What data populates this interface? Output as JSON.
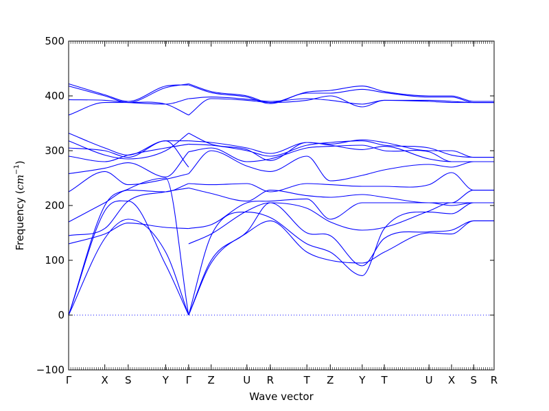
{
  "chart_data": {
    "type": "line",
    "title": "",
    "xlabel": "Wave vector",
    "ylabel": "Frequency (cm⁻¹)",
    "ylabel_parts": {
      "prefix": "Frequency (",
      "unit": "cm",
      "exponent": "−1",
      "suffix": ")"
    },
    "ylim": [
      -100,
      500
    ],
    "yticks": [
      -100,
      0,
      100,
      200,
      300,
      400,
      500
    ],
    "xlim": [
      0,
      1
    ],
    "xticks": [
      {
        "label": "Γ",
        "x": 0.0
      },
      {
        "label": "X",
        "x": 0.085
      },
      {
        "label": "S",
        "x": 0.14
      },
      {
        "label": "Y",
        "x": 0.228
      },
      {
        "label": "Γ",
        "x": 0.282
      },
      {
        "label": "Z",
        "x": 0.335
      },
      {
        "label": "U",
        "x": 0.419
      },
      {
        "label": "R",
        "x": 0.474
      },
      {
        "label": "T",
        "x": 0.56
      },
      {
        "label": "Z",
        "x": 0.615
      },
      {
        "label": "Y",
        "x": 0.69
      },
      {
        "label": "T",
        "x": 0.742
      },
      {
        "label": "U",
        "x": 0.847
      },
      {
        "label": "X",
        "x": 0.9
      },
      {
        "label": "S",
        "x": 0.952
      },
      {
        "label": "R",
        "x": 1.0
      }
    ],
    "reference_line": {
      "y": 0,
      "style": "dotted"
    },
    "line_color": "#0000ff",
    "series": [
      {
        "values": [
          [
            0,
            0
          ],
          [
            0.085,
            190
          ],
          [
            0.14,
            208
          ],
          [
            0.228,
            92
          ],
          [
            0.282,
            0
          ]
        ]
      },
      {
        "values": [
          [
            0,
            0
          ],
          [
            0.085,
            140
          ],
          [
            0.14,
            175
          ],
          [
            0.228,
            115
          ],
          [
            0.282,
            0
          ]
        ]
      },
      {
        "values": [
          [
            0,
            0
          ],
          [
            0.085,
            200
          ],
          [
            0.14,
            230
          ],
          [
            0.228,
            250
          ],
          [
            0.282,
            0
          ]
        ]
      },
      {
        "values": [
          [
            0,
            130
          ],
          [
            0.085,
            148
          ],
          [
            0.14,
            168
          ],
          [
            0.228,
            160
          ],
          [
            0.282,
            158
          ]
        ]
      },
      {
        "values": [
          [
            0,
            145
          ],
          [
            0.085,
            158
          ],
          [
            0.14,
            208
          ],
          [
            0.228,
            225
          ],
          [
            0.282,
            232
          ]
        ]
      },
      {
        "values": [
          [
            0,
            170
          ],
          [
            0.085,
            205
          ],
          [
            0.14,
            228
          ],
          [
            0.228,
            225
          ],
          [
            0.282,
            240
          ]
        ]
      },
      {
        "values": [
          [
            0,
            225
          ],
          [
            0.085,
            262
          ],
          [
            0.14,
            238
          ],
          [
            0.228,
            248
          ],
          [
            0.282,
            258
          ]
        ]
      },
      {
        "values": [
          [
            0,
            258
          ],
          [
            0.085,
            268
          ],
          [
            0.14,
            278
          ],
          [
            0.228,
            252
          ],
          [
            0.282,
            298
          ]
        ]
      },
      {
        "values": [
          [
            0,
            290
          ],
          [
            0.085,
            280
          ],
          [
            0.14,
            292
          ],
          [
            0.228,
            305
          ],
          [
            0.282,
            312
          ]
        ]
      },
      {
        "values": [
          [
            0,
            305
          ],
          [
            0.085,
            300
          ],
          [
            0.14,
            288
          ],
          [
            0.228,
            318
          ],
          [
            0.282,
            318
          ]
        ]
      },
      {
        "values": [
          [
            0,
            318
          ],
          [
            0.085,
            292
          ],
          [
            0.14,
            285
          ],
          [
            0.228,
            300
          ],
          [
            0.282,
            332
          ]
        ]
      },
      {
        "values": [
          [
            0,
            332
          ],
          [
            0.085,
            305
          ],
          [
            0.14,
            292
          ],
          [
            0.228,
            318
          ],
          [
            0.282,
            270
          ]
        ]
      },
      {
        "values": [
          [
            0,
            365
          ],
          [
            0.085,
            388
          ],
          [
            0.14,
            388
          ],
          [
            0.228,
            385
          ],
          [
            0.282,
            365
          ]
        ]
      },
      {
        "values": [
          [
            0,
            393
          ],
          [
            0.085,
            392
          ],
          [
            0.14,
            388
          ],
          [
            0.228,
            385
          ],
          [
            0.282,
            395
          ]
        ]
      },
      {
        "values": [
          [
            0,
            418
          ],
          [
            0.085,
            400
          ],
          [
            0.14,
            388
          ],
          [
            0.228,
            415
          ],
          [
            0.282,
            422
          ]
        ]
      },
      {
        "values": [
          [
            0,
            422
          ],
          [
            0.085,
            402
          ],
          [
            0.14,
            390
          ],
          [
            0.228,
            418
          ],
          [
            0.282,
            420
          ]
        ]
      },
      {
        "values": [
          [
            0.282,
            0
          ],
          [
            0.335,
            95
          ],
          [
            0.419,
            150
          ],
          [
            0.474,
            172
          ],
          [
            0.56,
            115
          ],
          [
            0.615,
            100
          ],
          [
            0.69,
            95
          ],
          [
            0.742,
            115
          ],
          [
            0.847,
            150
          ],
          [
            0.9,
            148
          ],
          [
            0.952,
            172
          ],
          [
            1,
            172
          ]
        ]
      },
      {
        "values": [
          [
            0.282,
            0
          ],
          [
            0.335,
            100
          ],
          [
            0.419,
            152
          ],
          [
            0.474,
            205
          ],
          [
            0.56,
            150
          ],
          [
            0.615,
            145
          ],
          [
            0.69,
            90
          ],
          [
            0.742,
            140
          ],
          [
            0.847,
            152
          ],
          [
            0.9,
            155
          ],
          [
            0.952,
            172
          ],
          [
            1,
            172
          ]
        ]
      },
      {
        "values": [
          [
            0.282,
            0
          ],
          [
            0.335,
            145
          ],
          [
            0.419,
            188
          ],
          [
            0.474,
            178
          ],
          [
            0.56,
            130
          ],
          [
            0.615,
            115
          ],
          [
            0.69,
            72
          ],
          [
            0.742,
            158
          ],
          [
            0.847,
            188
          ],
          [
            0.9,
            185
          ],
          [
            0.952,
            205
          ],
          [
            1,
            205
          ]
        ]
      },
      {
        "values": [
          [
            0.282,
            130
          ],
          [
            0.335,
            148
          ],
          [
            0.419,
            190
          ],
          [
            0.474,
            205
          ],
          [
            0.56,
            195
          ],
          [
            0.615,
            170
          ],
          [
            0.69,
            155
          ],
          [
            0.742,
            160
          ],
          [
            0.847,
            190
          ],
          [
            0.9,
            205
          ],
          [
            0.952,
            205
          ],
          [
            1,
            205
          ]
        ]
      },
      {
        "values": [
          [
            0.282,
            158
          ],
          [
            0.335,
            165
          ],
          [
            0.419,
            205
          ],
          [
            0.474,
            208
          ],
          [
            0.56,
            212
          ],
          [
            0.615,
            175
          ],
          [
            0.69,
            205
          ],
          [
            0.742,
            205
          ],
          [
            0.847,
            205
          ],
          [
            0.9,
            200
          ],
          [
            0.952,
            205
          ],
          [
            1,
            205
          ]
        ]
      },
      {
        "values": [
          [
            0.282,
            232
          ],
          [
            0.335,
            222
          ],
          [
            0.419,
            208
          ],
          [
            0.474,
            228
          ],
          [
            0.56,
            218
          ],
          [
            0.615,
            215
          ],
          [
            0.69,
            220
          ],
          [
            0.742,
            215
          ],
          [
            0.847,
            205
          ],
          [
            0.9,
            205
          ],
          [
            0.952,
            228
          ],
          [
            1,
            228
          ]
        ]
      },
      {
        "values": [
          [
            0.282,
            240
          ],
          [
            0.335,
            238
          ],
          [
            0.419,
            240
          ],
          [
            0.474,
            225
          ],
          [
            0.56,
            240
          ],
          [
            0.615,
            238
          ],
          [
            0.69,
            235
          ],
          [
            0.742,
            235
          ],
          [
            0.847,
            238
          ],
          [
            0.9,
            260
          ],
          [
            0.952,
            228
          ],
          [
            1,
            228
          ]
        ]
      },
      {
        "values": [
          [
            0.282,
            258
          ],
          [
            0.335,
            300
          ],
          [
            0.419,
            272
          ],
          [
            0.474,
            262
          ],
          [
            0.56,
            290
          ],
          [
            0.615,
            245
          ],
          [
            0.69,
            255
          ],
          [
            0.742,
            265
          ],
          [
            0.847,
            275
          ],
          [
            0.9,
            270
          ],
          [
            0.952,
            280
          ],
          [
            1,
            280
          ]
        ]
      },
      {
        "values": [
          [
            0.282,
            298
          ],
          [
            0.335,
            305
          ],
          [
            0.419,
            280
          ],
          [
            0.474,
            285
          ],
          [
            0.56,
            305
          ],
          [
            0.615,
            308
          ],
          [
            0.69,
            310
          ],
          [
            0.742,
            300
          ],
          [
            0.847,
            298
          ],
          [
            0.9,
            280
          ],
          [
            0.952,
            280
          ],
          [
            1,
            280
          ]
        ]
      },
      {
        "values": [
          [
            0.282,
            312
          ],
          [
            0.335,
            310
          ],
          [
            0.419,
            300
          ],
          [
            0.474,
            290
          ],
          [
            0.56,
            310
          ],
          [
            0.615,
            315
          ],
          [
            0.69,
            318
          ],
          [
            0.742,
            310
          ],
          [
            0.847,
            305
          ],
          [
            0.9,
            292
          ],
          [
            0.952,
            288
          ],
          [
            1,
            288
          ]
        ]
      },
      {
        "values": [
          [
            0.282,
            318
          ],
          [
            0.335,
            315
          ],
          [
            0.419,
            305
          ],
          [
            0.474,
            295
          ],
          [
            0.56,
            315
          ],
          [
            0.615,
            312
          ],
          [
            0.69,
            320
          ],
          [
            0.742,
            315
          ],
          [
            0.847,
            300
          ],
          [
            0.9,
            300
          ],
          [
            0.952,
            288
          ],
          [
            1,
            288
          ]
        ]
      },
      {
        "values": [
          [
            0.282,
            332
          ],
          [
            0.335,
            312
          ],
          [
            0.419,
            302
          ],
          [
            0.474,
            282
          ],
          [
            0.56,
            315
          ],
          [
            0.615,
            310
          ],
          [
            0.69,
            302
          ],
          [
            0.742,
            308
          ],
          [
            0.847,
            285
          ],
          [
            0.9,
            280
          ],
          [
            0.952,
            280
          ],
          [
            1,
            280
          ]
        ]
      },
      {
        "values": [
          [
            0.282,
            365
          ],
          [
            0.335,
            395
          ],
          [
            0.419,
            392
          ],
          [
            0.474,
            388
          ],
          [
            0.56,
            392
          ],
          [
            0.615,
            400
          ],
          [
            0.69,
            380
          ],
          [
            0.742,
            392
          ],
          [
            0.847,
            390
          ],
          [
            0.9,
            388
          ],
          [
            0.952,
            388
          ],
          [
            1,
            388
          ]
        ]
      },
      {
        "values": [
          [
            0.282,
            395
          ],
          [
            0.335,
            398
          ],
          [
            0.419,
            394
          ],
          [
            0.474,
            390
          ],
          [
            0.56,
            395
          ],
          [
            0.615,
            392
          ],
          [
            0.69,
            385
          ],
          [
            0.742,
            392
          ],
          [
            0.847,
            392
          ],
          [
            0.9,
            390
          ],
          [
            0.952,
            388
          ],
          [
            1,
            388
          ]
        ]
      },
      {
        "values": [
          [
            0.282,
            422
          ],
          [
            0.335,
            408
          ],
          [
            0.419,
            400
          ],
          [
            0.474,
            388
          ],
          [
            0.56,
            407
          ],
          [
            0.615,
            410
          ],
          [
            0.69,
            418
          ],
          [
            0.742,
            408
          ],
          [
            0.847,
            400
          ],
          [
            0.9,
            400
          ],
          [
            0.952,
            390
          ],
          [
            1,
            390
          ]
        ]
      },
      {
        "values": [
          [
            0.282,
            420
          ],
          [
            0.335,
            406
          ],
          [
            0.419,
            398
          ],
          [
            0.474,
            386
          ],
          [
            0.56,
            405
          ],
          [
            0.615,
            405
          ],
          [
            0.69,
            412
          ],
          [
            0.742,
            406
          ],
          [
            0.847,
            398
          ],
          [
            0.9,
            398
          ],
          [
            0.952,
            388
          ],
          [
            1,
            388
          ]
        ]
      }
    ]
  }
}
